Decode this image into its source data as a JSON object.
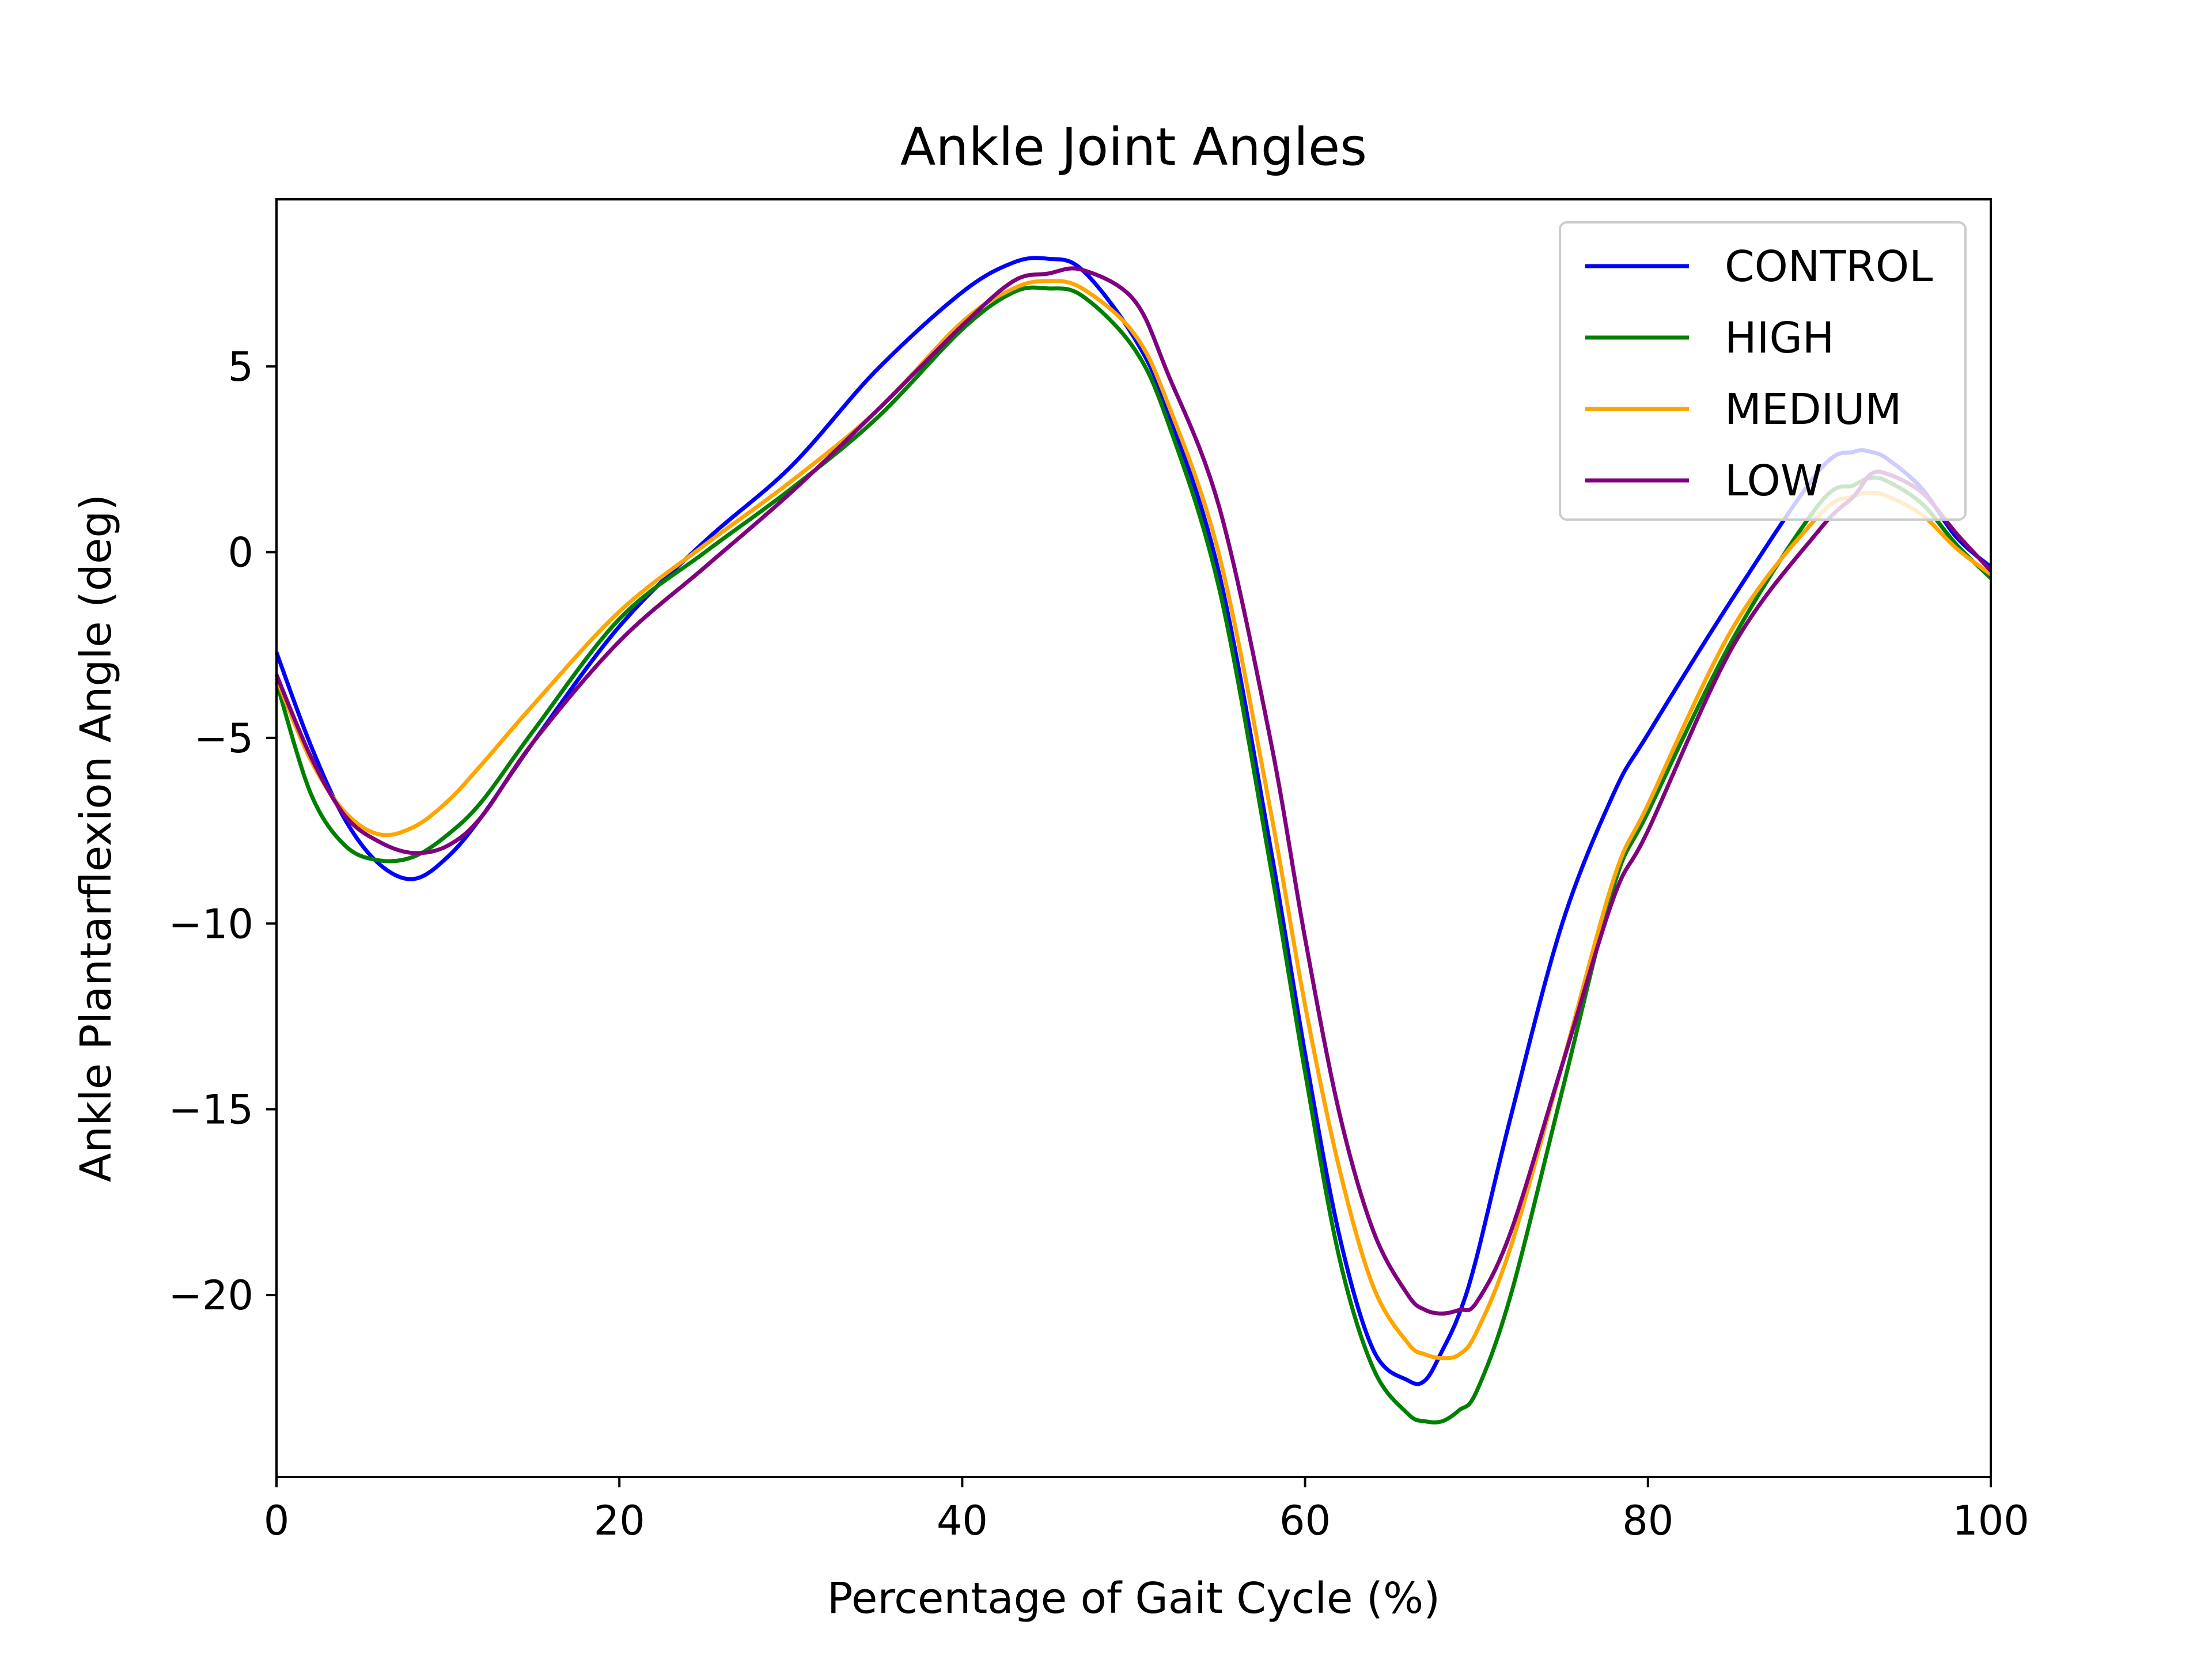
{
  "chart_data": {
    "type": "line",
    "title": "Ankle Joint Angles",
    "xlabel": "Percentage of Gait Cycle (%)",
    "ylabel": "Ankle Plantarflexion Angle (deg)",
    "xlim": [
      0,
      100
    ],
    "ylim": [
      -24.9,
      9.5
    ],
    "xticks": [
      0,
      20,
      40,
      60,
      80,
      100
    ],
    "yticks": [
      5,
      0,
      -5,
      -10,
      -15,
      -20
    ],
    "xtick_labels": [
      "0",
      "20",
      "40",
      "60",
      "80",
      "100"
    ],
    "ytick_labels": [
      "5",
      "0",
      "−5",
      "−10",
      "−15",
      "−20"
    ],
    "grid": false,
    "legend_position": "top-right",
    "x": [
      0,
      2,
      4,
      6,
      8,
      10,
      12,
      15,
      20,
      25,
      30,
      35,
      40,
      43,
      45,
      47,
      50,
      52,
      55,
      58,
      60,
      62,
      64,
      66,
      67,
      68,
      69,
      70,
      72,
      75,
      78,
      80,
      85,
      90,
      92,
      93,
      94,
      96,
      98,
      100
    ],
    "series": [
      {
        "name": "CONTROL",
        "color": "#0000ff",
        "values": [
          -2.7,
          -5.2,
          -7.2,
          -8.4,
          -8.8,
          -8.2,
          -7.1,
          -5.1,
          -2.0,
          0.3,
          2.3,
          4.9,
          7.0,
          7.8,
          7.9,
          7.6,
          5.8,
          3.8,
          -0.6,
          -8.0,
          -13.5,
          -18.4,
          -21.5,
          -22.3,
          -22.3,
          -21.5,
          -20.5,
          -19.0,
          -15.2,
          -10.0,
          -6.5,
          -4.9,
          -1.2,
          2.2,
          2.7,
          2.7,
          2.5,
          1.7,
          0.4,
          -0.4
        ]
      },
      {
        "name": "HIGH",
        "color": "#008000",
        "values": [
          -3.5,
          -6.5,
          -7.9,
          -8.3,
          -8.2,
          -7.6,
          -6.7,
          -4.8,
          -1.8,
          0.0,
          1.7,
          3.6,
          6.0,
          7.0,
          7.1,
          6.9,
          5.5,
          3.5,
          -1.0,
          -8.5,
          -14.0,
          -19.0,
          -22.0,
          -23.2,
          -23.4,
          -23.4,
          -23.1,
          -22.6,
          -20.0,
          -14.5,
          -9.0,
          -7.0,
          -2.3,
          1.3,
          1.8,
          2.0,
          1.9,
          1.3,
          0.2,
          -0.7
        ]
      },
      {
        "name": "MEDIUM",
        "color": "#ffa500",
        "values": [
          -3.4,
          -5.6,
          -7.0,
          -7.6,
          -7.4,
          -6.7,
          -5.7,
          -4.1,
          -1.6,
          0.2,
          1.9,
          3.8,
          6.2,
          7.1,
          7.3,
          7.1,
          5.9,
          4.0,
          -0.1,
          -7.0,
          -12.2,
          -16.6,
          -19.8,
          -21.3,
          -21.6,
          -21.7,
          -21.6,
          -21.0,
          -18.7,
          -13.8,
          -8.8,
          -6.8,
          -2.0,
          1.0,
          1.5,
          1.6,
          1.5,
          1.0,
          0.1,
          -0.6
        ]
      },
      {
        "name": "LOW",
        "color": "#800080",
        "values": [
          -3.3,
          -5.5,
          -7.1,
          -7.8,
          -8.1,
          -7.9,
          -7.1,
          -5.1,
          -2.4,
          -0.4,
          1.6,
          3.8,
          6.1,
          7.3,
          7.5,
          7.6,
          6.8,
          4.8,
          1.2,
          -5.1,
          -10.4,
          -15.1,
          -18.3,
          -20.0,
          -20.4,
          -20.5,
          -20.4,
          -20.2,
          -18.3,
          -13.8,
          -9.3,
          -7.5,
          -2.5,
          0.6,
          1.5,
          2.1,
          2.1,
          1.6,
          0.5,
          -0.5
        ]
      }
    ]
  }
}
